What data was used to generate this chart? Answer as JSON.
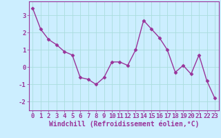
{
  "x": [
    0,
    1,
    2,
    3,
    4,
    5,
    6,
    7,
    8,
    9,
    10,
    11,
    12,
    13,
    14,
    15,
    16,
    17,
    18,
    19,
    20,
    21,
    22,
    23
  ],
  "y": [
    3.4,
    2.2,
    1.6,
    1.3,
    0.9,
    0.7,
    -0.6,
    -0.7,
    -1.0,
    -0.6,
    0.3,
    0.3,
    0.1,
    1.0,
    2.7,
    2.2,
    1.7,
    1.0,
    -0.3,
    0.1,
    -0.4,
    0.7,
    -0.8,
    -1.8
  ],
  "line_color": "#993399",
  "marker": "D",
  "marker_size": 2.5,
  "bg_color": "#cceeff",
  "grid_color": "#aadddd",
  "xlabel": "Windchill (Refroidissement éolien,°C)",
  "xlim": [
    -0.5,
    23.5
  ],
  "ylim": [
    -2.5,
    3.8
  ],
  "yticks": [
    -2,
    -1,
    0,
    1,
    2,
    3
  ],
  "xticks": [
    0,
    1,
    2,
    3,
    4,
    5,
    6,
    7,
    8,
    9,
    10,
    11,
    12,
    13,
    14,
    15,
    16,
    17,
    18,
    19,
    20,
    21,
    22,
    23
  ],
  "tick_fontsize": 6.5,
  "xlabel_fontsize": 7,
  "linewidth": 1.0
}
